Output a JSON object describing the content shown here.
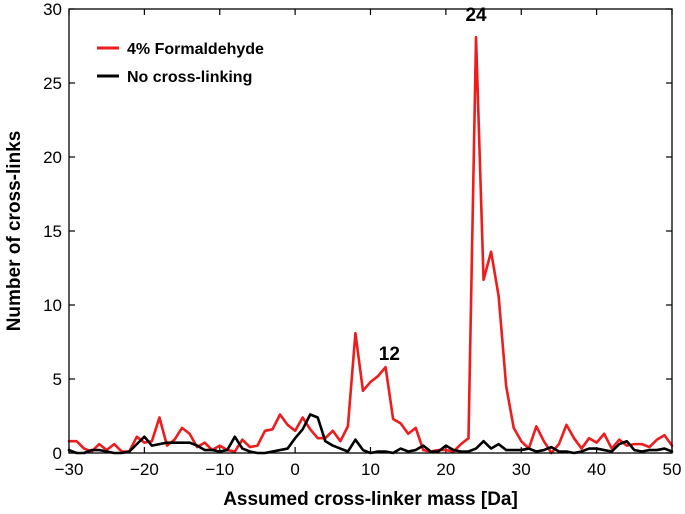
{
  "chart_data": {
    "type": "line",
    "xlabel": "Assumed cross-linker mass [Da]",
    "ylabel": "Number of cross-links",
    "xlim": [
      -30,
      50
    ],
    "ylim": [
      0,
      30
    ],
    "xticks": [
      -30,
      -20,
      -10,
      0,
      10,
      20,
      30,
      40,
      50
    ],
    "yticks": [
      0,
      5,
      10,
      15,
      20,
      25,
      30
    ],
    "grid": false,
    "legend_position": "top-left",
    "x": [
      -30,
      -29,
      -28,
      -27,
      -26,
      -25,
      -24,
      -23,
      -22,
      -21,
      -20,
      -19,
      -18,
      -17,
      -16,
      -15,
      -14,
      -13,
      -12,
      -11,
      -10,
      -9,
      -8,
      -7,
      -6,
      -5,
      -4,
      -3,
      -2,
      -1,
      0,
      1,
      2,
      3,
      4,
      5,
      6,
      7,
      8,
      9,
      10,
      11,
      12,
      13,
      14,
      15,
      16,
      17,
      18,
      19,
      20,
      21,
      22,
      23,
      24,
      25,
      26,
      27,
      28,
      29,
      30,
      31,
      32,
      33,
      34,
      35,
      36,
      37,
      38,
      39,
      40,
      41,
      42,
      43,
      44,
      45,
      46,
      47,
      48,
      49,
      50
    ],
    "series": [
      {
        "name": "4% Formaldehyde",
        "color": "#ee1c1c",
        "values": [
          0.8,
          0.8,
          0.3,
          0.1,
          0.6,
          0.2,
          0.6,
          0.1,
          0.1,
          1.1,
          0.7,
          0.8,
          2.4,
          0.5,
          0.9,
          1.7,
          1.3,
          0.4,
          0.7,
          0.2,
          0.5,
          0.2,
          0.1,
          0.9,
          0.4,
          0.5,
          1.5,
          1.6,
          2.6,
          1.9,
          1.5,
          2.4,
          1.6,
          1.0,
          1.0,
          1.5,
          0.8,
          1.8,
          8.1,
          4.2,
          4.8,
          5.2,
          5.8,
          2.3,
          2.0,
          1.3,
          1.7,
          0.2,
          0.1,
          0.2,
          0.2,
          0.1,
          0.6,
          1.0,
          28.1,
          11.7,
          13.6,
          10.6,
          4.5,
          1.7,
          0.8,
          0.3,
          1.8,
          0.8,
          0.0,
          0.6,
          1.9,
          1.0,
          0.3,
          1.0,
          0.7,
          1.3,
          0.3,
          0.9,
          0.5,
          0.6,
          0.6,
          0.4,
          0.9,
          1.2,
          0.5
        ]
      },
      {
        "name": "No cross-linking",
        "color": "#000000",
        "values": [
          0.2,
          0.0,
          0.0,
          0.2,
          0.2,
          0.1,
          0.0,
          0.0,
          0.1,
          0.6,
          1.1,
          0.5,
          0.6,
          0.7,
          0.7,
          0.7,
          0.7,
          0.5,
          0.2,
          0.2,
          0.1,
          0.2,
          1.1,
          0.3,
          0.1,
          0.0,
          0.0,
          0.1,
          0.2,
          0.3,
          1.0,
          1.6,
          2.6,
          2.4,
          0.8,
          0.5,
          0.3,
          0.1,
          0.9,
          0.2,
          0.0,
          0.1,
          0.1,
          0.0,
          0.3,
          0.1,
          0.2,
          0.5,
          0.1,
          0.1,
          0.5,
          0.2,
          0.1,
          0.1,
          0.3,
          0.8,
          0.3,
          0.6,
          0.2,
          0.2,
          0.2,
          0.3,
          0.1,
          0.2,
          0.4,
          0.1,
          0.1,
          0.0,
          0.1,
          0.3,
          0.3,
          0.2,
          0.1,
          0.6,
          0.8,
          0.2,
          0.1,
          0.2,
          0.2,
          0.3,
          0.1
        ]
      }
    ],
    "annotations": [
      {
        "text": "24",
        "x": 24,
        "y": 29.2
      },
      {
        "text": "12",
        "x": 12.5,
        "y": 6.3
      }
    ]
  }
}
